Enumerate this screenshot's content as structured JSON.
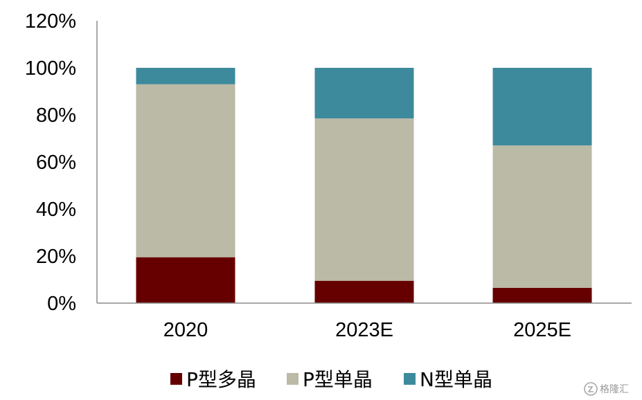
{
  "chart_data": {
    "type": "bar",
    "stacked": true,
    "categories": [
      "2020",
      "2023E",
      "2025E"
    ],
    "series": [
      {
        "name": "P型多晶",
        "values": [
          19.5,
          9.5,
          6.5
        ],
        "color": "#660000"
      },
      {
        "name": "P型单晶",
        "values": [
          73.5,
          69.0,
          60.5
        ],
        "color": "#bbbaa6"
      },
      {
        "name": "N型单晶",
        "values": [
          7.0,
          21.5,
          33.0
        ],
        "color": "#3d8a9c"
      }
    ],
    "yticks": [
      "0%",
      "20%",
      "40%",
      "60%",
      "80%",
      "100%",
      "120%"
    ],
    "ylim": [
      0,
      120
    ],
    "grid": false,
    "legend_position": "bottom",
    "title": "",
    "xlabel": "",
    "ylabel": ""
  },
  "watermark": {
    "text": "格隆汇",
    "icon": "watermark-logo-icon"
  }
}
